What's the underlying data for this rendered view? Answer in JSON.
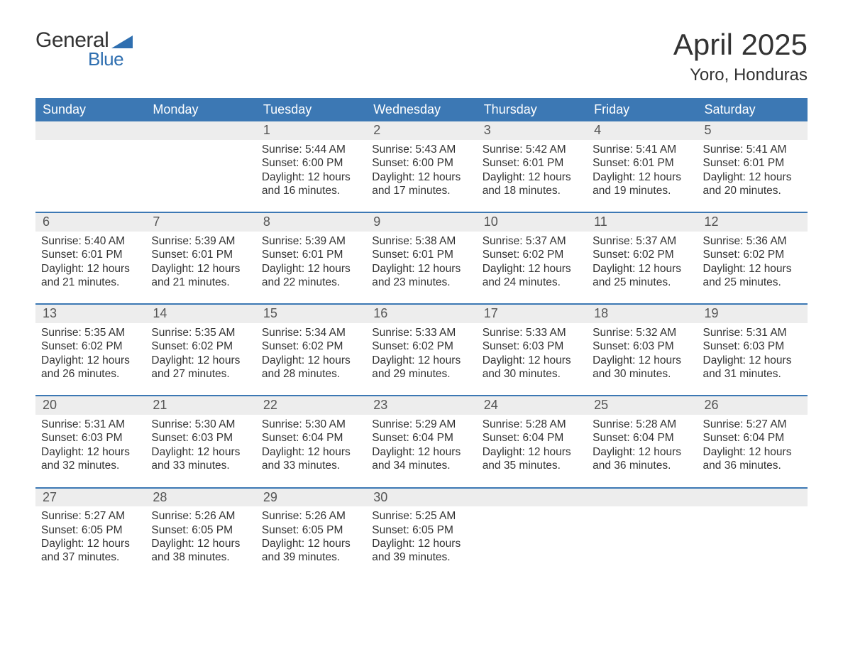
{
  "logo": {
    "text1": "General",
    "text2": "Blue",
    "tri_color": "#2f6fb0"
  },
  "title": "April 2025",
  "location": "Yoro, Honduras",
  "colors": {
    "header_bg": "#3c78b4",
    "header_text": "#ffffff",
    "daynum_bg": "#ededed",
    "sep_line": "#3c78b4",
    "text": "#333333",
    "logo_blue": "#2f6fb0"
  },
  "day_headers": [
    "Sunday",
    "Monday",
    "Tuesday",
    "Wednesday",
    "Thursday",
    "Friday",
    "Saturday"
  ],
  "weeks": [
    [
      {
        "n": "",
        "sr": "",
        "ss": "",
        "dl": ""
      },
      {
        "n": "",
        "sr": "",
        "ss": "",
        "dl": ""
      },
      {
        "n": "1",
        "sr": "Sunrise: 5:44 AM",
        "ss": "Sunset: 6:00 PM",
        "dl": "Daylight: 12 hours and 16 minutes."
      },
      {
        "n": "2",
        "sr": "Sunrise: 5:43 AM",
        "ss": "Sunset: 6:00 PM",
        "dl": "Daylight: 12 hours and 17 minutes."
      },
      {
        "n": "3",
        "sr": "Sunrise: 5:42 AM",
        "ss": "Sunset: 6:01 PM",
        "dl": "Daylight: 12 hours and 18 minutes."
      },
      {
        "n": "4",
        "sr": "Sunrise: 5:41 AM",
        "ss": "Sunset: 6:01 PM",
        "dl": "Daylight: 12 hours and 19 minutes."
      },
      {
        "n": "5",
        "sr": "Sunrise: 5:41 AM",
        "ss": "Sunset: 6:01 PM",
        "dl": "Daylight: 12 hours and 20 minutes."
      }
    ],
    [
      {
        "n": "6",
        "sr": "Sunrise: 5:40 AM",
        "ss": "Sunset: 6:01 PM",
        "dl": "Daylight: 12 hours and 21 minutes."
      },
      {
        "n": "7",
        "sr": "Sunrise: 5:39 AM",
        "ss": "Sunset: 6:01 PM",
        "dl": "Daylight: 12 hours and 21 minutes."
      },
      {
        "n": "8",
        "sr": "Sunrise: 5:39 AM",
        "ss": "Sunset: 6:01 PM",
        "dl": "Daylight: 12 hours and 22 minutes."
      },
      {
        "n": "9",
        "sr": "Sunrise: 5:38 AM",
        "ss": "Sunset: 6:01 PM",
        "dl": "Daylight: 12 hours and 23 minutes."
      },
      {
        "n": "10",
        "sr": "Sunrise: 5:37 AM",
        "ss": "Sunset: 6:02 PM",
        "dl": "Daylight: 12 hours and 24 minutes."
      },
      {
        "n": "11",
        "sr": "Sunrise: 5:37 AM",
        "ss": "Sunset: 6:02 PM",
        "dl": "Daylight: 12 hours and 25 minutes."
      },
      {
        "n": "12",
        "sr": "Sunrise: 5:36 AM",
        "ss": "Sunset: 6:02 PM",
        "dl": "Daylight: 12 hours and 25 minutes."
      }
    ],
    [
      {
        "n": "13",
        "sr": "Sunrise: 5:35 AM",
        "ss": "Sunset: 6:02 PM",
        "dl": "Daylight: 12 hours and 26 minutes."
      },
      {
        "n": "14",
        "sr": "Sunrise: 5:35 AM",
        "ss": "Sunset: 6:02 PM",
        "dl": "Daylight: 12 hours and 27 minutes."
      },
      {
        "n": "15",
        "sr": "Sunrise: 5:34 AM",
        "ss": "Sunset: 6:02 PM",
        "dl": "Daylight: 12 hours and 28 minutes."
      },
      {
        "n": "16",
        "sr": "Sunrise: 5:33 AM",
        "ss": "Sunset: 6:02 PM",
        "dl": "Daylight: 12 hours and 29 minutes."
      },
      {
        "n": "17",
        "sr": "Sunrise: 5:33 AM",
        "ss": "Sunset: 6:03 PM",
        "dl": "Daylight: 12 hours and 30 minutes."
      },
      {
        "n": "18",
        "sr": "Sunrise: 5:32 AM",
        "ss": "Sunset: 6:03 PM",
        "dl": "Daylight: 12 hours and 30 minutes."
      },
      {
        "n": "19",
        "sr": "Sunrise: 5:31 AM",
        "ss": "Sunset: 6:03 PM",
        "dl": "Daylight: 12 hours and 31 minutes."
      }
    ],
    [
      {
        "n": "20",
        "sr": "Sunrise: 5:31 AM",
        "ss": "Sunset: 6:03 PM",
        "dl": "Daylight: 12 hours and 32 minutes."
      },
      {
        "n": "21",
        "sr": "Sunrise: 5:30 AM",
        "ss": "Sunset: 6:03 PM",
        "dl": "Daylight: 12 hours and 33 minutes."
      },
      {
        "n": "22",
        "sr": "Sunrise: 5:30 AM",
        "ss": "Sunset: 6:04 PM",
        "dl": "Daylight: 12 hours and 33 minutes."
      },
      {
        "n": "23",
        "sr": "Sunrise: 5:29 AM",
        "ss": "Sunset: 6:04 PM",
        "dl": "Daylight: 12 hours and 34 minutes."
      },
      {
        "n": "24",
        "sr": "Sunrise: 5:28 AM",
        "ss": "Sunset: 6:04 PM",
        "dl": "Daylight: 12 hours and 35 minutes."
      },
      {
        "n": "25",
        "sr": "Sunrise: 5:28 AM",
        "ss": "Sunset: 6:04 PM",
        "dl": "Daylight: 12 hours and 36 minutes."
      },
      {
        "n": "26",
        "sr": "Sunrise: 5:27 AM",
        "ss": "Sunset: 6:04 PM",
        "dl": "Daylight: 12 hours and 36 minutes."
      }
    ],
    [
      {
        "n": "27",
        "sr": "Sunrise: 5:27 AM",
        "ss": "Sunset: 6:05 PM",
        "dl": "Daylight: 12 hours and 37 minutes."
      },
      {
        "n": "28",
        "sr": "Sunrise: 5:26 AM",
        "ss": "Sunset: 6:05 PM",
        "dl": "Daylight: 12 hours and 38 minutes."
      },
      {
        "n": "29",
        "sr": "Sunrise: 5:26 AM",
        "ss": "Sunset: 6:05 PM",
        "dl": "Daylight: 12 hours and 39 minutes."
      },
      {
        "n": "30",
        "sr": "Sunrise: 5:25 AM",
        "ss": "Sunset: 6:05 PM",
        "dl": "Daylight: 12 hours and 39 minutes."
      },
      {
        "n": "",
        "sr": "",
        "ss": "",
        "dl": ""
      },
      {
        "n": "",
        "sr": "",
        "ss": "",
        "dl": ""
      },
      {
        "n": "",
        "sr": "",
        "ss": "",
        "dl": ""
      }
    ]
  ]
}
